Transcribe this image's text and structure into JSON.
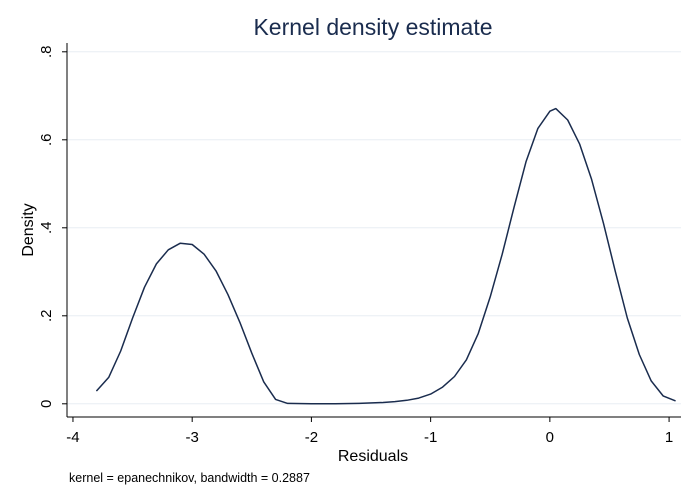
{
  "chart_data": {
    "type": "line",
    "title": "Kernel density estimate",
    "xlabel": "Residuals",
    "ylabel": "Density",
    "note": "kernel = epanechnikov, bandwidth = 0.2887",
    "xlim": [
      -4.05,
      1.1
    ],
    "ylim": [
      -0.03,
      0.82
    ],
    "xticks": [
      -4,
      -3,
      -2,
      -1,
      0,
      1
    ],
    "xtick_labels": [
      "-4",
      "-3",
      "-2",
      "-1",
      "0",
      "1"
    ],
    "yticks": [
      0,
      0.2,
      0.4,
      0.6,
      0.8
    ],
    "ytick_labels": [
      "0",
      ".2",
      ".4",
      ".6",
      ".8"
    ],
    "grid": true,
    "line_color": "#1a2c4e",
    "grid_color": "#e8eef4",
    "series": [
      {
        "name": "density",
        "x": [
          -3.8,
          -3.7,
          -3.6,
          -3.5,
          -3.4,
          -3.3,
          -3.2,
          -3.1,
          -3.0,
          -2.9,
          -2.8,
          -2.7,
          -2.6,
          -2.5,
          -2.4,
          -2.3,
          -2.2,
          -2.0,
          -1.8,
          -1.6,
          -1.4,
          -1.3,
          -1.2,
          -1.1,
          -1.0,
          -0.9,
          -0.8,
          -0.7,
          -0.6,
          -0.5,
          -0.4,
          -0.3,
          -0.2,
          -0.1,
          0.0,
          0.05,
          0.15,
          0.25,
          0.35,
          0.45,
          0.55,
          0.65,
          0.75,
          0.85,
          0.95,
          1.05
        ],
        "y": [
          0.03,
          0.06,
          0.12,
          0.195,
          0.265,
          0.318,
          0.35,
          0.365,
          0.362,
          0.34,
          0.302,
          0.248,
          0.185,
          0.115,
          0.05,
          0.01,
          0.001,
          0.0,
          0.0,
          0.001,
          0.003,
          0.005,
          0.008,
          0.013,
          0.022,
          0.038,
          0.062,
          0.1,
          0.16,
          0.243,
          0.34,
          0.447,
          0.55,
          0.626,
          0.665,
          0.671,
          0.645,
          0.59,
          0.51,
          0.41,
          0.3,
          0.195,
          0.112,
          0.052,
          0.018,
          0.007
        ]
      }
    ]
  }
}
